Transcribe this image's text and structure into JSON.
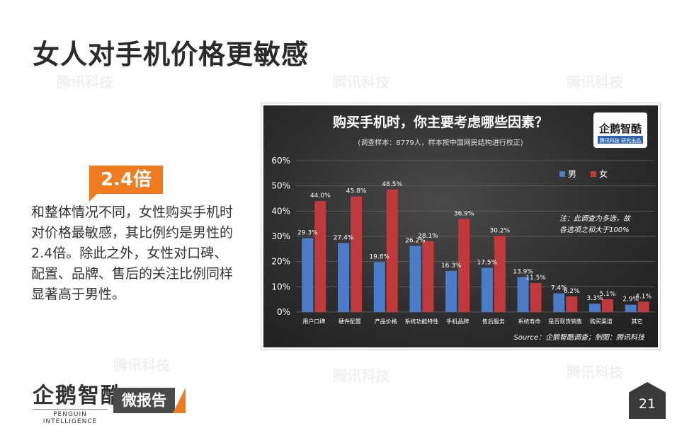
{
  "title": "女人对手机价格更敏感",
  "badge": "2.4倍",
  "body_text": "和整体情况不同，女性购买手机时对价格最敏感，其比例约是男性的2.4倍。除此之外，女性对口碑、配置、品牌、售后的关注比例同样显著高于男性。",
  "footer": {
    "logo": "企鹅智酷",
    "logo_sub": "PENGUIN INTELLIGENCE",
    "report": "微报告",
    "page": "21"
  },
  "watermark": "腾讯科技",
  "colors": {
    "male": "#4a7cc7",
    "female": "#c0393b",
    "accent": "#f07c1f"
  },
  "chart_data": {
    "type": "bar",
    "title": "购买手机时，你主要考虑哪些因素？",
    "subtitle": "(调查样本：8779人，样本按中国网民结构进行校正)",
    "chart_logo": "企鹅智酷",
    "chart_logo_sub": "腾讯科技 研究出品",
    "note_line1": "注：此调查为多选，故",
    "note_line2": "各选项之和大于100%",
    "source": "Source：企鹅智酷调查；制图：腾讯科技",
    "categories": [
      "用户口碑",
      "硬件配置",
      "产品价格",
      "系统功能特性",
      "手机品牌",
      "售后服务",
      "系统寿命",
      "是否现货销售",
      "购买渠道",
      "其它"
    ],
    "series": [
      {
        "name": "男",
        "values": [
          29.3,
          27.4,
          19.8,
          26.2,
          16.3,
          17.5,
          13.9,
          7.4,
          3.3,
          2.9
        ],
        "labels": [
          "29.3%",
          "27.4%",
          "19.8%",
          "26.2%",
          "16.3%",
          "17.5%",
          "13.9%",
          "7.4%",
          "3.3%",
          "2.9%"
        ]
      },
      {
        "name": "女",
        "values": [
          44.0,
          45.8,
          48.5,
          28.1,
          36.9,
          30.2,
          11.5,
          6.2,
          5.1,
          4.1
        ],
        "labels": [
          "44.0%",
          "45.8%",
          "48.5%",
          "28.1%",
          "36.9%",
          "30.2%",
          "11.5%",
          "6.2%",
          "5.1%",
          "4.1%"
        ]
      }
    ],
    "yticks": [
      "0%",
      "10%",
      "20%",
      "30%",
      "40%",
      "50%",
      "60%"
    ],
    "ylim": [
      0,
      60
    ],
    "legend_position": "top-right",
    "grid": true
  }
}
